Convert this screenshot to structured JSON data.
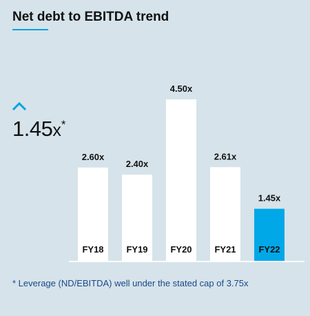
{
  "header": {
    "title": "Net debt to EBITDA trend"
  },
  "kpi": {
    "arrow_icon": "chevron-up-icon",
    "value": "1.45",
    "unit": "x",
    "marker": "*"
  },
  "footnote": "* Leverage (ND/EBITDA) well under the stated cap of 3.75x",
  "colors": {
    "bar": "#ffffff",
    "highlight": "#00a8e8",
    "accent": "#00a3e0",
    "background": "#d6e3ea",
    "baseline": "#ffffff"
  },
  "chart_data": {
    "type": "bar",
    "title": "Net debt to EBITDA trend",
    "categories": [
      "FY18",
      "FY19",
      "FY20",
      "FY21",
      "FY22"
    ],
    "values": [
      2.6,
      2.4,
      4.5,
      2.61,
      1.45
    ],
    "data_labels": [
      "2.60x",
      "2.40x",
      "4.50x",
      "2.61x",
      "1.45x"
    ],
    "highlight_category": "FY22",
    "ylim": [
      0,
      4.5
    ],
    "grid": false,
    "legend": "none"
  }
}
